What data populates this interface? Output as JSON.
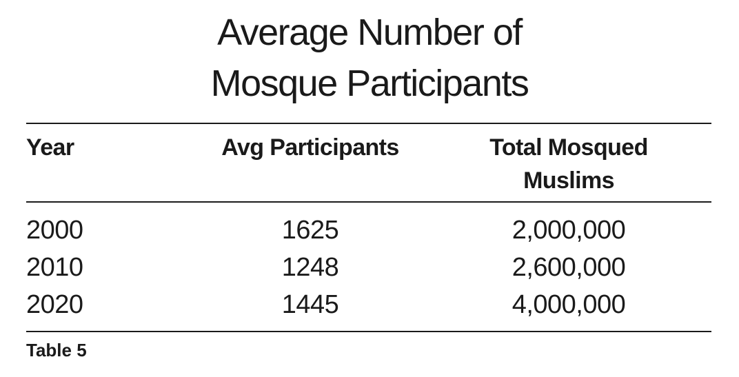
{
  "chart_data": {
    "type": "table",
    "title_lines": [
      "Average Number of",
      "Mosque Participants"
    ],
    "columns": [
      "Year",
      "Avg Participants",
      "Total Mosqued Muslims"
    ],
    "column_header_lines": [
      [
        "Year"
      ],
      [
        "Avg Participants"
      ],
      [
        "Total Mosqued",
        "Muslims"
      ]
    ],
    "rows": [
      [
        "2000",
        "1625",
        "2,000,000"
      ],
      [
        "2010",
        "1248",
        "2,600,000"
      ],
      [
        "2020",
        "1445",
        "4,000,000"
      ]
    ],
    "caption": "Table 5"
  },
  "colors": {
    "text": "#1a1a1a",
    "background": "#ffffff",
    "rules": "#1a1a1a"
  }
}
